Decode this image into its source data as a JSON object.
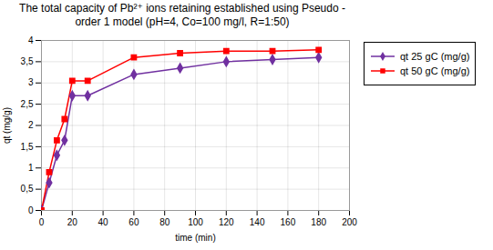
{
  "chart_data": {
    "type": "line",
    "title": "The total capacity of  Pb²⁺ ions retaining established using Pseudo -\norder 1 model (pH=4, Co=100 mg/l, R=1:50)",
    "x_label": "time (min)",
    "y_label": "qt (mg/g)",
    "x": [
      0,
      5,
      10,
      15,
      20,
      30,
      60,
      90,
      120,
      150,
      180
    ],
    "series": [
      {
        "name": "qt 25 gC (mg/g)",
        "color": "#7030A0",
        "marker": "diamond",
        "line_style": "solid",
        "values": [
          0,
          0.65,
          1.3,
          1.65,
          2.7,
          2.7,
          3.2,
          3.35,
          3.5,
          3.55,
          3.6
        ]
      },
      {
        "name": "qt 50 gC (mg/g)",
        "color": "#FF0000",
        "marker": "square",
        "line_style": "solid",
        "values": [
          0,
          0.9,
          1.65,
          2.15,
          3.05,
          3.05,
          3.6,
          3.7,
          3.75,
          3.75,
          3.78
        ]
      }
    ],
    "xlim": [
      0,
      200
    ],
    "ylim": [
      0,
      4
    ],
    "xticks": [
      0,
      20,
      40,
      60,
      80,
      100,
      120,
      140,
      160,
      180,
      200
    ],
    "yticks": [
      0,
      {
        "value": 0.5,
        "label": "0,5"
      },
      1,
      {
        "value": 1.5,
        "label": "1,5"
      },
      2,
      {
        "value": 2.5,
        "label": "2,5"
      },
      3,
      {
        "value": 3.5,
        "label": "3,5"
      },
      4
    ],
    "grid": true,
    "legend": "right"
  }
}
